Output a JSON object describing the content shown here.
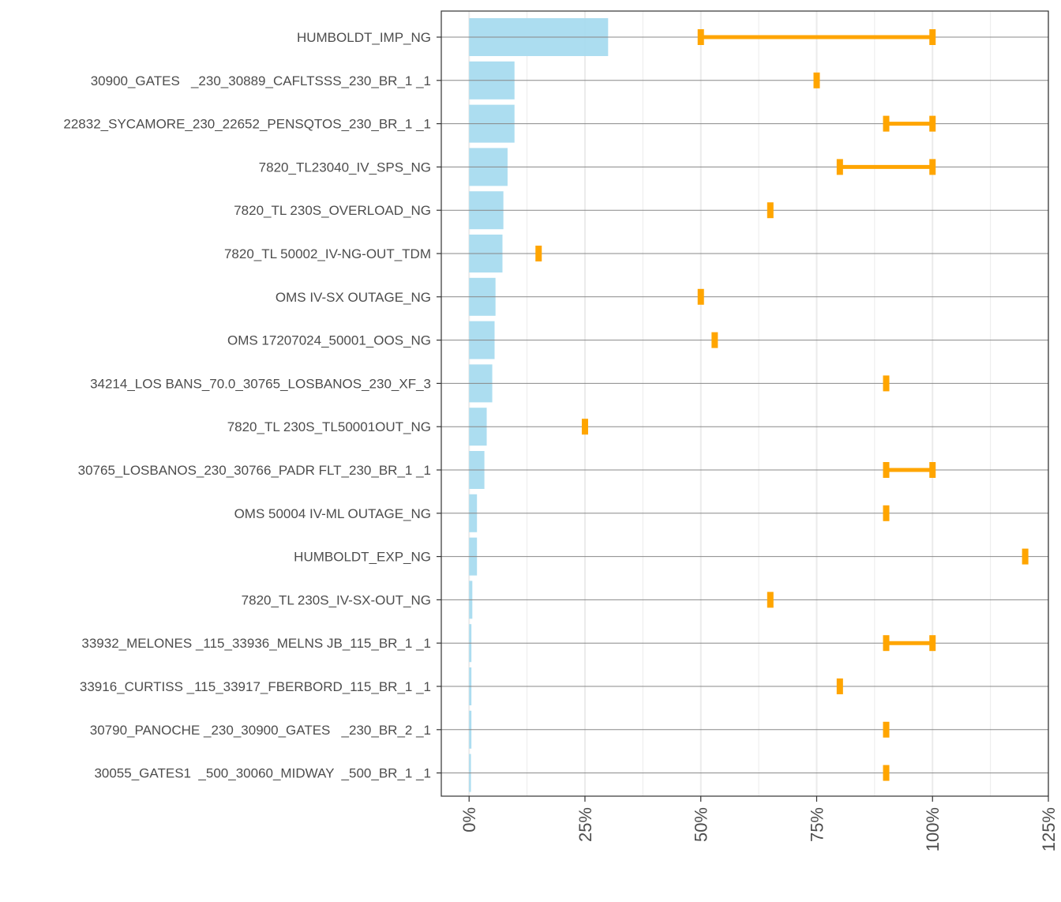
{
  "chart_data": {
    "type": "bar",
    "orientation": "horizontal",
    "title": "",
    "xlabel": "",
    "ylabel": "",
    "xlim": [
      -6,
      125
    ],
    "x_ticks": [
      0,
      25,
      50,
      75,
      100,
      125
    ],
    "x_tick_labels": [
      "0%",
      "25%",
      "50%",
      "75%",
      "100%",
      "125%"
    ],
    "colors": {
      "bar": "#a8dbef",
      "range": "#ffa500",
      "row_line": "#888888",
      "grid": "#ebebeb",
      "axis": "#333333",
      "text": "#4d4d4d"
    },
    "categories": [
      "HUMBOLDT_IMP_NG",
      "30900_GATES   _230_30889_CAFLTSSS_230_BR_1 _1",
      "22832_SYCAMORE_230_22652_PENSQTOS_230_BR_1 _1",
      "7820_TL23040_IV_SPS_NG",
      "7820_TL 230S_OVERLOAD_NG",
      "7820_TL 50002_IV-NG-OUT_TDM",
      "OMS IV-SX OUTAGE_NG",
      "OMS 17207024_50001_OOS_NG",
      "34214_LOS BANS_70.0_30765_LOSBANOS_230_XF_3",
      "7820_TL 230S_TL50001OUT_NG",
      "30765_LOSBANOS_230_30766_PADR FLT_230_BR_1 _1",
      "OMS 50004 IV-ML OUTAGE_NG",
      "HUMBOLDT_EXP_NG",
      "7820_TL 230S_IV-SX-OUT_NG",
      "33932_MELONES _115_33936_MELNS JB_115_BR_1 _1",
      "33916_CURTISS _115_33917_FBERBORD_115_BR_1 _1",
      "30790_PANOCHE _230_30900_GATES   _230_BR_2 _1",
      "30055_GATES1  _500_30060_MIDWAY  _500_BR_1 _1"
    ],
    "series": [
      {
        "name": "bar_value_percent",
        "values": [
          30,
          9.8,
          9.8,
          8.3,
          7.4,
          7.2,
          5.7,
          5.5,
          5.0,
          3.8,
          3.3,
          1.7,
          1.7,
          0.7,
          0.5,
          0.5,
          0.5,
          0.4
        ]
      },
      {
        "name": "range_min_percent",
        "values": [
          50,
          75,
          90,
          80,
          65,
          15,
          50,
          53,
          90,
          25,
          90,
          90,
          120,
          65,
          90,
          80,
          90,
          90
        ]
      },
      {
        "name": "range_max_percent",
        "values": [
          100,
          75,
          100,
          100,
          65,
          15,
          50,
          53,
          90,
          25,
          100,
          90,
          120,
          65,
          100,
          80,
          90,
          90
        ]
      }
    ]
  }
}
